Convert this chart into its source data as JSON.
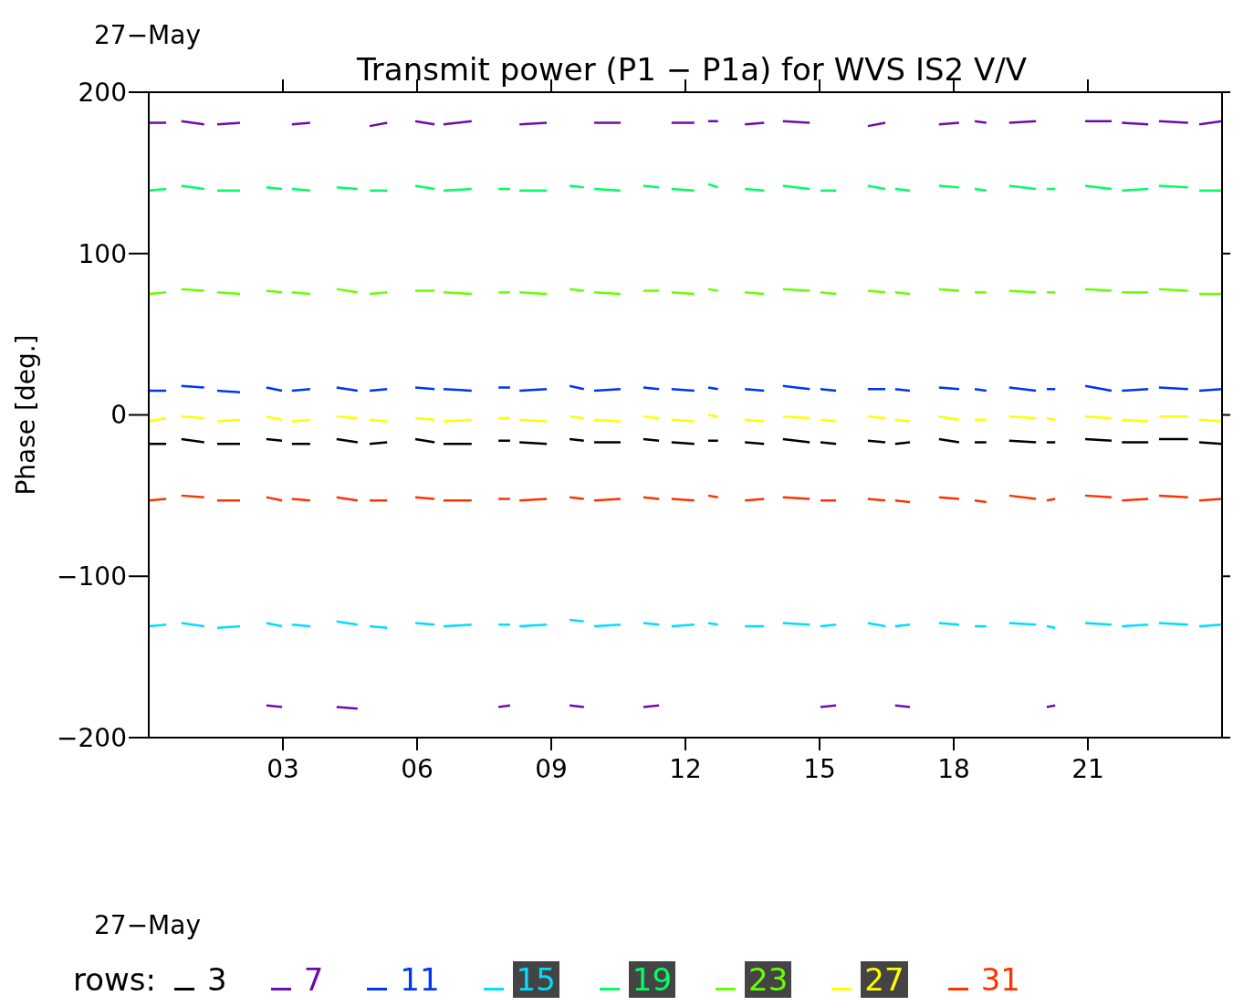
{
  "chart_data": {
    "type": "line",
    "title": "Transmit power (P1 − P1a) for WVS IS2 V/V",
    "ylabel": "Phase [deg.]",
    "legend_title": "rows:",
    "legend": "bottom",
    "annotations": [
      "27−May",
      "27−May"
    ],
    "xlim": [
      0,
      24
    ],
    "xticks": [
      {
        "value": 3,
        "label": "03"
      },
      {
        "value": 6,
        "label": "06"
      },
      {
        "value": 9,
        "label": "09"
      },
      {
        "value": 12,
        "label": "12"
      },
      {
        "value": 15,
        "label": "15"
      },
      {
        "value": 18,
        "label": "18"
      },
      {
        "value": 21,
        "label": "21"
      }
    ],
    "ylim": [
      -200,
      200
    ],
    "yticks": [
      {
        "value": -200,
        "label": "−200"
      },
      {
        "value": -100,
        "label": "−100"
      },
      0,
      100,
      200
    ],
    "x": [
      0,
      0.39,
      0.56,
      0.73,
      1.24,
      1.38,
      1.53,
      2.04,
      2.33,
      2.63,
      2.98,
      3.09,
      3.2,
      3.61,
      3.9,
      4.2,
      4.67,
      4.8,
      4.94,
      5.33,
      5.64,
      5.96,
      6.39,
      6.49,
      6.59,
      7.22,
      7.57,
      7.82,
      8.08,
      8.18,
      8.29,
      8.9,
      9.15,
      9.41,
      9.73,
      9.84,
      9.96,
      10.55,
      10.8,
      11.06,
      11.41,
      11.55,
      11.69,
      12.2,
      12.35,
      12.51,
      12.73,
      13.03,
      13.33,
      13.76,
      13.97,
      14.18,
      14.78,
      14.9,
      15.02,
      15.37,
      15.72,
      16.08,
      16.47,
      16.58,
      16.69,
      17.02,
      17.35,
      17.67,
      18.12,
      18.3,
      18.47,
      18.73,
      18.98,
      19.24,
      19.84,
      19.96,
      20.08,
      20.27,
      20.6,
      20.94,
      21.53,
      21.65,
      21.76,
      22.35,
      22.47,
      22.59,
      23.24,
      23.36,
      23.49,
      24
    ],
    "series": [
      {
        "name": "3",
        "color": "#000000",
        "values": [
          -18,
          -18,
          null,
          -15,
          -17,
          null,
          -18,
          -18,
          null,
          -15,
          -16,
          null,
          -18,
          -18,
          null,
          -15,
          -17,
          null,
          -18,
          -17,
          null,
          -15,
          -17,
          null,
          -18,
          -18,
          null,
          -16,
          -16,
          null,
          -17,
          -18,
          null,
          -15,
          -16,
          null,
          -17,
          -17,
          null,
          -15,
          -16,
          null,
          -17,
          -18,
          null,
          -16,
          -16,
          null,
          -17,
          -18,
          null,
          -15,
          -17,
          null,
          -17,
          -18,
          null,
          -16,
          -17,
          null,
          -18,
          -17,
          null,
          -15,
          -17,
          null,
          -17,
          -17,
          null,
          -16,
          -17,
          null,
          -17,
          -17,
          null,
          -15,
          -16,
          null,
          -17,
          -17,
          null,
          -15,
          -15,
          null,
          -17,
          -18
        ]
      },
      {
        "name": "7",
        "color": "#6a0dad",
        "values": [
          181,
          181,
          null,
          182,
          180,
          null,
          180,
          181,
          null,
          null,
          null,
          null,
          180,
          181,
          null,
          null,
          null,
          null,
          179,
          181,
          null,
          182,
          180,
          null,
          180,
          182,
          null,
          null,
          null,
          null,
          180,
          181,
          null,
          null,
          null,
          null,
          181,
          181,
          null,
          null,
          null,
          null,
          181,
          181,
          null,
          182,
          182,
          null,
          180,
          181,
          null,
          182,
          181,
          null,
          null,
          null,
          null,
          179,
          181,
          null,
          null,
          null,
          null,
          180,
          181,
          null,
          182,
          181,
          null,
          181,
          182,
          null,
          null,
          null,
          null,
          182,
          182,
          null,
          181,
          180,
          null,
          182,
          181,
          null,
          180,
          182
        ]
      },
      {
        "color": "#6a0dad",
        "values": [
          null,
          null,
          null,
          null,
          null,
          null,
          null,
          null,
          null,
          -180,
          -181,
          null,
          null,
          null,
          null,
          -181,
          -182,
          null,
          null,
          null,
          null,
          null,
          null,
          null,
          null,
          null,
          null,
          -181,
          -180,
          null,
          null,
          null,
          null,
          -180,
          -181,
          null,
          null,
          null,
          null,
          -181,
          -180,
          null,
          null,
          null,
          null,
          null,
          null,
          null,
          null,
          null,
          null,
          null,
          null,
          null,
          -181,
          -180,
          null,
          null,
          null,
          null,
          -180,
          -181,
          null,
          null,
          null,
          null,
          null,
          null,
          null,
          null,
          null,
          null,
          -181,
          -180,
          null,
          null,
          null,
          null,
          null,
          null,
          null,
          null,
          null,
          null,
          null,
          null
        ]
      },
      {
        "name": "11",
        "color": "#0033ff",
        "values": [
          15,
          15,
          null,
          18,
          17,
          null,
          15,
          14,
          null,
          17,
          15,
          null,
          15,
          16,
          null,
          17,
          15,
          null,
          15,
          16,
          null,
          17,
          16,
          null,
          16,
          15,
          null,
          17,
          17,
          null,
          15,
          16,
          null,
          18,
          16,
          null,
          15,
          16,
          null,
          17,
          16,
          null,
          16,
          15,
          null,
          17,
          16,
          null,
          16,
          15,
          null,
          18,
          16,
          null,
          16,
          15,
          null,
          16,
          16,
          null,
          16,
          15,
          null,
          17,
          16,
          null,
          16,
          15,
          null,
          17,
          15,
          null,
          16,
          16,
          null,
          18,
          15,
          null,
          15,
          16,
          null,
          17,
          16,
          null,
          15,
          16
        ]
      },
      {
        "name": "15",
        "color": "#00ddff",
        "values": [
          -131,
          -130,
          null,
          -129,
          -131,
          null,
          -132,
          -131,
          null,
          -129,
          -131,
          null,
          -130,
          -131,
          null,
          -128,
          -130,
          null,
          -131,
          -132,
          null,
          -129,
          -130,
          null,
          -131,
          -130,
          null,
          -130,
          -130,
          null,
          -131,
          -130,
          null,
          -127,
          -128,
          null,
          -131,
          -130,
          null,
          -129,
          -130,
          null,
          -131,
          -130,
          null,
          -129,
          -130,
          null,
          -131,
          -131,
          null,
          -129,
          -130,
          null,
          -131,
          -130,
          null,
          -129,
          -131,
          null,
          -131,
          -130,
          null,
          -129,
          -130,
          null,
          -131,
          -131,
          null,
          -129,
          -130,
          null,
          -131,
          -132,
          null,
          -129,
          -130,
          null,
          -131,
          -130,
          null,
          -129,
          -130,
          null,
          -131,
          -130
        ]
      },
      {
        "name": "19",
        "color": "#00ff66",
        "values": [
          139,
          140,
          null,
          142,
          140,
          null,
          139,
          139,
          null,
          141,
          140,
          null,
          140,
          139,
          null,
          141,
          140,
          null,
          139,
          139,
          null,
          142,
          140,
          null,
          139,
          140,
          null,
          140,
          140,
          null,
          139,
          139,
          null,
          142,
          141,
          null,
          140,
          139,
          null,
          142,
          141,
          null,
          140,
          139,
          null,
          143,
          141,
          null,
          140,
          139,
          null,
          142,
          140,
          null,
          139,
          139,
          null,
          142,
          140,
          null,
          140,
          139,
          null,
          142,
          141,
          null,
          140,
          139,
          null,
          142,
          140,
          null,
          140,
          140,
          null,
          142,
          140,
          null,
          139,
          140,
          null,
          142,
          141,
          null,
          139,
          139
        ]
      },
      {
        "name": "23",
        "color": "#66ff00",
        "values": [
          75,
          76,
          null,
          78,
          77,
          null,
          76,
          75,
          null,
          77,
          76,
          null,
          76,
          75,
          null,
          78,
          76,
          null,
          75,
          76,
          null,
          77,
          77,
          null,
          76,
          75,
          null,
          76,
          76,
          null,
          76,
          75,
          null,
          78,
          77,
          null,
          76,
          75,
          null,
          77,
          77,
          null,
          76,
          75,
          null,
          78,
          77,
          null,
          76,
          75,
          null,
          78,
          77,
          null,
          76,
          75,
          null,
          77,
          76,
          null,
          76,
          75,
          null,
          78,
          77,
          null,
          76,
          76,
          null,
          77,
          76,
          null,
          76,
          76,
          null,
          78,
          77,
          null,
          76,
          76,
          null,
          78,
          77,
          null,
          75,
          75
        ]
      },
      {
        "name": "27",
        "color": "#ffff00",
        "values": [
          -4,
          -2,
          null,
          -1,
          -2,
          null,
          -4,
          -3,
          null,
          -1,
          -3,
          null,
          -4,
          -3,
          null,
          -1,
          -2,
          null,
          -3,
          -4,
          null,
          -2,
          -3,
          null,
          -4,
          -3,
          null,
          -2,
          -2,
          null,
          -3,
          -4,
          null,
          -1,
          -2,
          null,
          -3,
          -4,
          null,
          -1,
          -2,
          null,
          -3,
          -4,
          null,
          0,
          -1,
          null,
          -3,
          -4,
          null,
          -1,
          -2,
          null,
          -3,
          -4,
          null,
          -1,
          -2,
          null,
          -3,
          -4,
          null,
          -1,
          -3,
          null,
          -3,
          -3,
          null,
          -1,
          -2,
          null,
          -2,
          -3,
          null,
          -1,
          -2,
          null,
          -3,
          -4,
          null,
          -1,
          -1,
          null,
          -3,
          -4
        ]
      },
      {
        "name": "31",
        "color": "#ff3300",
        "values": [
          -53,
          -52,
          null,
          -50,
          -51,
          null,
          -53,
          -53,
          null,
          -51,
          -53,
          null,
          -52,
          -53,
          null,
          -51,
          -53,
          null,
          -53,
          -53,
          null,
          -51,
          -52,
          null,
          -53,
          -53,
          null,
          -52,
          -52,
          null,
          -53,
          -52,
          null,
          -51,
          -52,
          null,
          -53,
          -52,
          null,
          -51,
          -52,
          null,
          -52,
          -53,
          null,
          -50,
          -51,
          null,
          -53,
          -52,
          null,
          -51,
          -52,
          null,
          -53,
          -53,
          null,
          -52,
          -53,
          null,
          -53,
          -54,
          null,
          -51,
          -52,
          null,
          -53,
          -54,
          null,
          -50,
          -52,
          null,
          -53,
          -52,
          null,
          -50,
          -51,
          null,
          -53,
          -52,
          null,
          -50,
          -51,
          null,
          -53,
          -52
        ]
      }
    ]
  }
}
